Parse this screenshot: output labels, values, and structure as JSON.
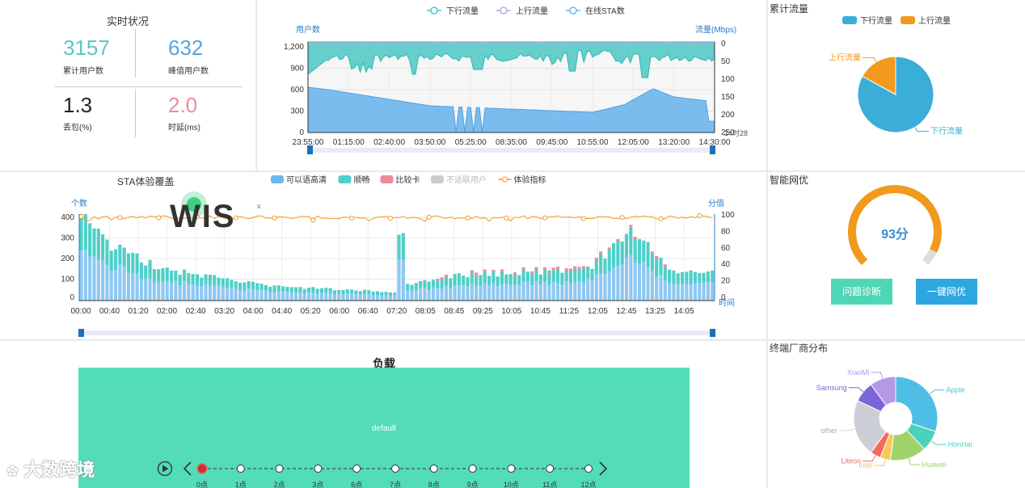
{
  "realtime": {
    "title": "实时状况",
    "total_users": {
      "value": "3157",
      "label": "累计用户数",
      "color": "#5cc6c4"
    },
    "peak_users": {
      "value": "632",
      "label": "峰值用户数",
      "color": "#54a8e0"
    },
    "packet_loss": {
      "value": "1.3",
      "label": "丢包(%)",
      "color": "#222222"
    },
    "latency": {
      "value": "2.0",
      "label": "时延(ms)",
      "color": "#f08a99"
    }
  },
  "traffic_chart": {
    "legend": [
      "下行流量",
      "上行流量",
      "在线STA数"
    ],
    "left_axis_label": "用户数",
    "right_axis_label": "流量(Mbps)",
    "left_ticks": [
      "0",
      "300",
      "600",
      "900",
      "1,200"
    ],
    "right_ticks": [
      "0",
      "50",
      "100",
      "150",
      "200",
      "250"
    ],
    "x_ticks": [
      "23:55:00",
      "01:15:00",
      "02:40:00",
      "03:50:00",
      "05:25:00",
      "08:35:00",
      "09:45:00",
      "10:55:00",
      "12:05:00",
      "13:20:00",
      "14:30:00"
    ],
    "end_label": "24时28",
    "colors": {
      "down": "#4cc8c4",
      "up": "#b9a9e2",
      "sta": "#6eb6ee"
    }
  },
  "cumulative": {
    "title": "累计流量",
    "legend": [
      "下行流量",
      "上行流量"
    ],
    "colors": [
      "#3aaed8",
      "#f29a1e"
    ],
    "slices": [
      {
        "name": "下行流量",
        "value": 83
      },
      {
        "name": "上行流量",
        "value": 17
      }
    ]
  },
  "sta_chart": {
    "title": "STA体验覆盖",
    "legend": [
      "可以语高清",
      "顺畅",
      "比较卡",
      "不适联用户",
      "体验指标"
    ],
    "colors": [
      "#6cb8ee",
      "#4fcfc8",
      "#f08a99",
      "#cccccc",
      "#f29a1e"
    ],
    "left_axis_label": "个数",
    "right_axis_label": "分值",
    "left_ticks": [
      "0",
      "100",
      "200",
      "300",
      "400"
    ],
    "right_ticks": [
      "0",
      "20",
      "40",
      "60",
      "80",
      "100"
    ],
    "x_ticks": [
      "00:00",
      "00:40",
      "01:20",
      "02:00",
      "02:40",
      "03:20",
      "04:00",
      "04:40",
      "05:20",
      "06:00",
      "06:40",
      "07:20",
      "08:05",
      "08:45",
      "09:25",
      "10:05",
      "10:45",
      "11:25",
      "12:05",
      "12:45",
      "13:25",
      "14:05"
    ],
    "x_axis_end": "时间",
    "logo_text": "WIS",
    "close_mark": "x"
  },
  "smart": {
    "title": "智能网优",
    "score_text": "93分",
    "score": 93,
    "gauge_color": "#f29a1e",
    "btn_diagnose": "问题诊断",
    "btn_optimize": "一键网优"
  },
  "load": {
    "title": "负载",
    "area_label": "default",
    "area_color": "#52dcb7",
    "timeline": [
      "0点",
      "1点",
      "2点",
      "3点",
      "6点",
      "7点",
      "8点",
      "9点",
      "10点",
      "11点",
      "12点"
    ],
    "watermark": "大数跨境"
  },
  "vendor": {
    "title": "终端厂商分布",
    "slices": [
      {
        "name": "Apple",
        "value": 30,
        "color": "#4fbee6"
      },
      {
        "name": "HonHai",
        "value": 8,
        "color": "#4cd1bd"
      },
      {
        "name": "Huawei",
        "value": 14,
        "color": "#9fd36a"
      },
      {
        "name": "Intel",
        "value": 4,
        "color": "#f7c85a"
      },
      {
        "name": "Liteon",
        "value": 4,
        "color": "#f26b5b"
      },
      {
        "name": "other",
        "value": 22,
        "color": "#ccd0d6"
      },
      {
        "name": "Samsung",
        "value": 8,
        "color": "#7a66d8"
      },
      {
        "name": "XiaoMi",
        "value": 10,
        "color": "#b49ae6"
      }
    ]
  }
}
